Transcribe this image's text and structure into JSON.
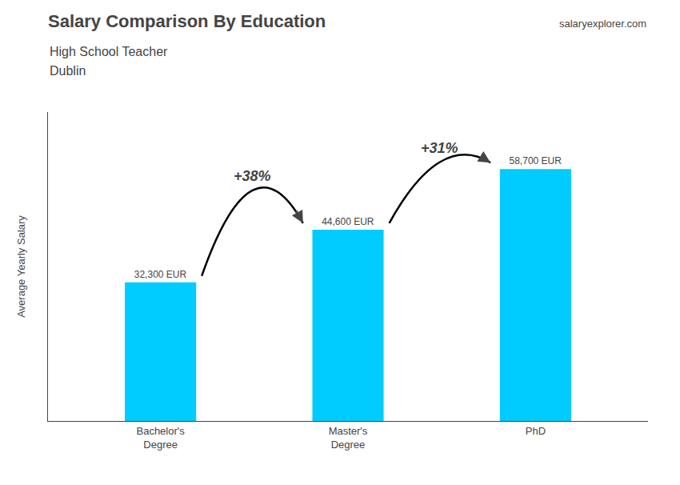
{
  "chart_data": {
    "type": "bar",
    "title": "Salary Comparison By Education",
    "subtitle": [
      "High School Teacher",
      "Dublin"
    ],
    "categories": [
      "Bachelor's\nDegree",
      "Master's\nDegree",
      "PhD"
    ],
    "values": [
      32300,
      44600,
      58700
    ],
    "value_labels": [
      "32,300 EUR",
      "44,600 EUR",
      "58,700 EUR"
    ],
    "data_labels": true,
    "color": "#00CCFF",
    "ylabel": "Average Yearly Salary",
    "ylim": [
      0,
      72000
    ],
    "yticks": [],
    "tick_labels": "x",
    "grid": false,
    "annotations": [
      {
        "text": "salary"
      },
      {
        "text": "explorer"
      },
      {
        "text": ".com"
      },
      {
        "text": "+38%",
        "from": "Bachelor's\nDegree",
        "to": "Master's\nDegree"
      },
      {
        "text": "+31%",
        "from": "Master's\nDegree",
        "to": "PhD"
      }
    ]
  }
}
